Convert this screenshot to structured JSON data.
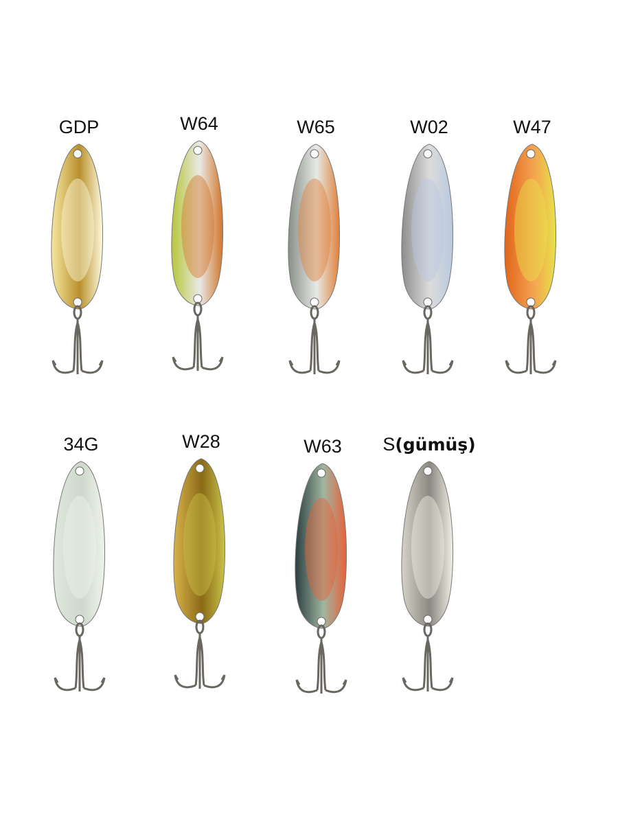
{
  "lures": [
    {
      "code": "GDP",
      "suffix": "",
      "colors": [
        "#f6e6a0",
        "#b8902c",
        "#fffbe0"
      ]
    },
    {
      "code": "W64",
      "suffix": "",
      "colors": [
        "#b7c63a",
        "#e9e9e6",
        "#d2762a"
      ]
    },
    {
      "code": "W65",
      "suffix": "",
      "colors": [
        "#8a8e88",
        "#e6eae6",
        "#e0803a"
      ]
    },
    {
      "code": "W02",
      "suffix": "",
      "colors": [
        "#8d8d8d",
        "#dcdcdc",
        "#b8c8e0"
      ]
    },
    {
      "code": "W47",
      "suffix": "",
      "colors": [
        "#e0651a",
        "#f4a050",
        "#e8e24a"
      ]
    },
    {
      "code": "34G",
      "suffix": "",
      "colors": [
        "#dfe8dc",
        "#cfd8cc",
        "#eef3ea"
      ]
    },
    {
      "code": "W28",
      "suffix": "",
      "colors": [
        "#d8b24a",
        "#8a6a18",
        "#c9c248"
      ]
    },
    {
      "code": "W63",
      "suffix": "",
      "colors": [
        "#2b3e40",
        "#9fb6a0",
        "#e8603a"
      ]
    },
    {
      "code": "S",
      "suffix": "(gümüş)",
      "colors": [
        "#d6d2c8",
        "#8a8880",
        "#f2efe6"
      ]
    }
  ]
}
